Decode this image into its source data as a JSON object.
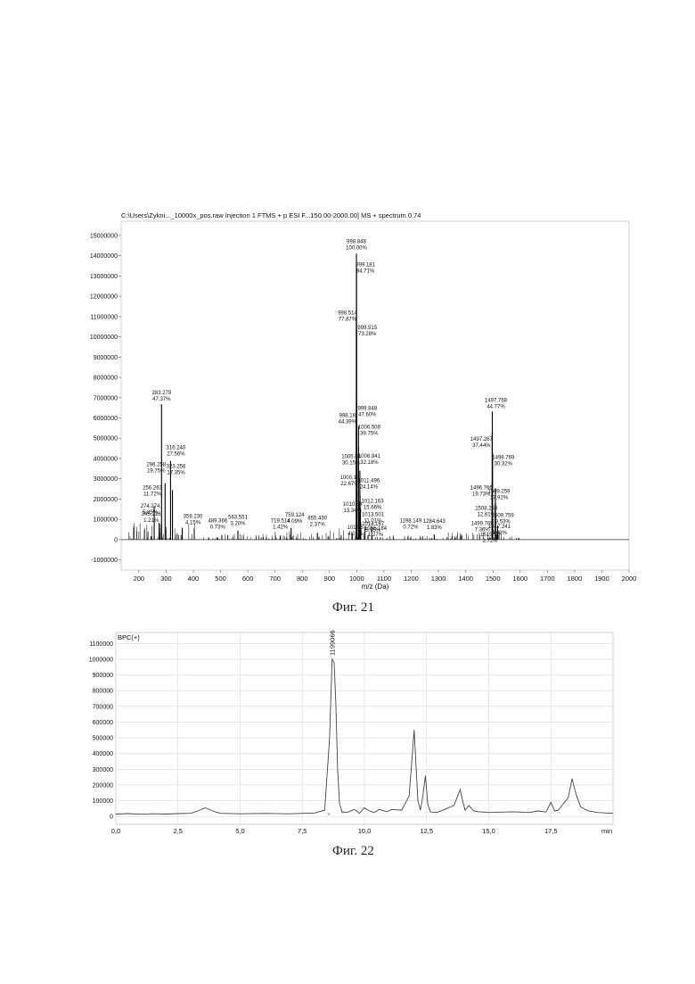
{
  "figure21": {
    "caption": "Фиг. 21",
    "header": "C:\\Users\\Zykni..._10000x_pos.raw Injection 1 FTMS + p ESI F...150.00-2000.00] MS + spectrum 0.74",
    "xlabel": "m/z (Da)"
  },
  "figure22": {
    "caption": "Фиг. 22",
    "trace_label": "BPC(+)",
    "peak_label": "1199066",
    "x_unit": "min"
  },
  "chart_data": [
    {
      "type": "bar",
      "title": "C:\\Users\\Zykni..._10000x_pos.raw Injection 1 FTMS + p ESI F...150.00-2000.00] MS + spectrum 0.74",
      "xlabel": "m/z (Da)",
      "ylabel": "",
      "xlim": [
        135,
        2000
      ],
      "ylim": [
        -1500000,
        15700000
      ],
      "x_ticks": [
        200,
        300,
        400,
        500,
        600,
        700,
        800,
        900,
        1000,
        1100,
        1200,
        1300,
        1400,
        1500,
        1600,
        1700,
        1800,
        1900,
        2000
      ],
      "y_ticks": [
        -1000000,
        0,
        1000000,
        2000000,
        3000000,
        4000000,
        5000000,
        6000000,
        7000000,
        8000000,
        9000000,
        10000000,
        11000000,
        12000000,
        13000000,
        14000000,
        15000000
      ],
      "peaks": [
        {
          "mz": 245.226,
          "rel": 1.21,
          "label": "245.226\n1.21%"
        },
        {
          "mz": 256.263,
          "rel": 11.72,
          "label": "256.263\n11.72%"
        },
        {
          "mz": 274.274,
          "rel": 5.85,
          "label": "274.274\n5.85%"
        },
        {
          "mz": 283.279,
          "rel": 47.37,
          "label": "283.279\n47.37%"
        },
        {
          "mz": 296.258,
          "rel": 19.75,
          "label": "296.258\n19.75%"
        },
        {
          "mz": 316.24,
          "rel": 27.56,
          "label": "316.240\n27.56%"
        },
        {
          "mz": 323.256,
          "rel": 17.35,
          "label": "323.256\n17.35%"
        },
        {
          "mz": 359.23,
          "rel": 4.15,
          "label": "359.230\n4.15%"
        },
        {
          "mz": 489.366,
          "rel": 0.73,
          "label": "489.366\n0.73%"
        },
        {
          "mz": 563.551,
          "rel": 3.2,
          "label": "563.551\n3.20%"
        },
        {
          "mz": 719.514,
          "rel": 1.42,
          "label": "719.514\n1.42%"
        },
        {
          "mz": 759.124,
          "rel": 4.09,
          "label": "759.124\n4.09%"
        },
        {
          "mz": 855.43,
          "rel": 2.37,
          "label": "855.430\n2.37%"
        },
        {
          "mz": 998.848,
          "rel": 100.0,
          "label": "998.848\n100.00%"
        },
        {
          "mz": 999.181,
          "rel": 94.71,
          "label": "999.181\n94.71%"
        },
        {
          "mz": 998.514,
          "rel": 77.87,
          "label": "998.514\n77.87%"
        },
        {
          "mz": 999.515,
          "rel": 73.28,
          "label": "999.515\n73.28%"
        },
        {
          "mz": 999.848,
          "rel": 47.6,
          "label": "999.848\n47.60%"
        },
        {
          "mz": 998.18,
          "rel": 44.39,
          "label": "998.18\n44.39%"
        },
        {
          "mz": 1006.508,
          "rel": 39.75,
          "label": "1006.508\n39.75%"
        },
        {
          "mz": 1005.84,
          "rel": 30.15,
          "label": "1005.84\n30.15%"
        },
        {
          "mz": 1006.841,
          "rel": 32.18,
          "label": "1006.841\n32.18%"
        },
        {
          "mz": 1011.496,
          "rel": 24.14,
          "label": "1011.496\n24.14%"
        },
        {
          "mz": 1000.18,
          "rel": 22.67,
          "label": "1000.18\n22.67%"
        },
        {
          "mz": 1012.163,
          "rel": 15.66,
          "label": "1012.163\n15.66%"
        },
        {
          "mz": 1010.83,
          "rel": 13.34,
          "label": "1010.83\n13.34%"
        },
        {
          "mz": 1013.501,
          "rel": 11.01,
          "label": "1013.501\n11.01%"
        },
        {
          "mz": 1014.167,
          "rel": 5.95,
          "label": "1014.167\n5.95%"
        },
        {
          "mz": 1014.5,
          "rel": 4.01,
          "label": "1014.5\n4.01%"
        },
        {
          "mz": 1056.184,
          "rel": 1.27,
          "label": "1056.184\n1.27%"
        },
        {
          "mz": 1198.149,
          "rel": 0.72,
          "label": "1198.149\n0.72%"
        },
        {
          "mz": 1284.643,
          "rel": 1.83,
          "label": "1284.643\n1.83%"
        },
        {
          "mz": 1497.768,
          "rel": 44.77,
          "label": "1497.768\n44.77%"
        },
        {
          "mz": 1497.267,
          "rel": 37.44,
          "label": "1497.267\n37.44%"
        },
        {
          "mz": 1498.769,
          "rel": 30.32,
          "label": "1498.769\n30.32%"
        },
        {
          "mz": 1496.766,
          "rel": 19.73,
          "label": "1496.766\n19.73%"
        },
        {
          "mz": 1509.259,
          "rel": 17.92,
          "label": "1509.259\n17.92%"
        },
        {
          "mz": 1508.258,
          "rel": 12.61,
          "label": "1508.258\n12.61%"
        },
        {
          "mz": 1509.759,
          "rel": 9.53,
          "label": "1509.759\n9.53%"
        },
        {
          "mz": 1499.769,
          "rel": 7.36,
          "label": "1499.769\n7.36%"
        },
        {
          "mz": 1517.241,
          "rel": 4.89,
          "label": "1517.241\n4.89%"
        },
        {
          "mz": 1515.73,
          "rel": 2.72,
          "label": "1515.73\n2.72%"
        }
      ]
    },
    {
      "type": "line",
      "title": "BPC(+)",
      "xlabel": "min",
      "xlim": [
        0,
        20
      ],
      "ylim": [
        -50000,
        1170000
      ],
      "x_ticks": [
        "0,0",
        "2,5",
        "5,0",
        "7,5",
        "10,0",
        "12,5",
        "15,0",
        "17,5"
      ],
      "y_ticks": [
        0,
        100000,
        200000,
        300000,
        400000,
        500000,
        600000,
        700000,
        800000,
        900000,
        1000000,
        1100000
      ],
      "series": [
        {
          "x": [
            0,
            0.5,
            1,
            1.5,
            2,
            2.5,
            3,
            3.3,
            3.6,
            3.9,
            4.2,
            5,
            6,
            7,
            8,
            8.4,
            8.6,
            8.7,
            8.78,
            8.85,
            8.92,
            9.0,
            9.1,
            9.3,
            9.6,
            9.8,
            10.0,
            10.2,
            10.4,
            10.6,
            10.9,
            11.1,
            11.5,
            11.8,
            12.0,
            12.15,
            12.25,
            12.35,
            12.45,
            12.55,
            12.65,
            12.8,
            13.0,
            13.3,
            13.6,
            13.85,
            13.95,
            14.05,
            14.2,
            14.4,
            14.6,
            15.0,
            15.5,
            16.0,
            16.6,
            17.0,
            17.3,
            17.5,
            17.65,
            17.8,
            18.0,
            18.2,
            18.35,
            18.5,
            18.7,
            19.0,
            19.4,
            20.0
          ],
          "y": [
            15000,
            18000,
            14000,
            17000,
            15000,
            18000,
            20000,
            35000,
            55000,
            35000,
            20000,
            17000,
            19000,
            17000,
            22000,
            40000,
            500000,
            1000000,
            980000,
            720000,
            300000,
            80000,
            30000,
            25000,
            45000,
            20000,
            55000,
            35000,
            25000,
            45000,
            30000,
            45000,
            40000,
            130000,
            550000,
            100000,
            40000,
            130000,
            260000,
            80000,
            30000,
            25000,
            30000,
            50000,
            70000,
            170000,
            100000,
            40000,
            70000,
            35000,
            30000,
            25000,
            28000,
            30000,
            25000,
            35000,
            28000,
            90000,
            35000,
            40000,
            80000,
            120000,
            240000,
            150000,
            60000,
            35000,
            25000,
            20000
          ]
        }
      ]
    }
  ]
}
